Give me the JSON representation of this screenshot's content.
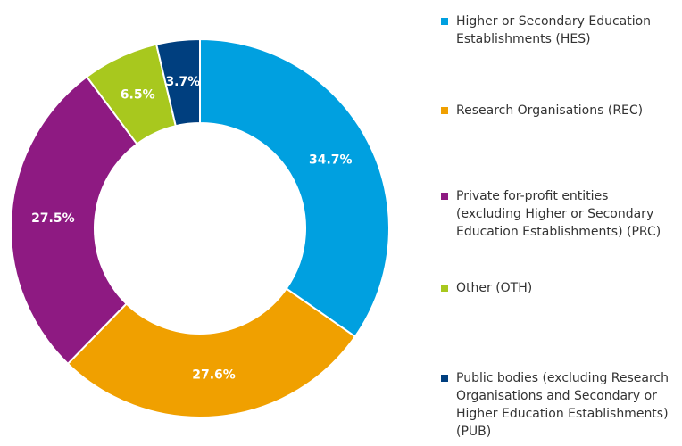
{
  "chart_data": {
    "type": "donut",
    "categories": [
      "Higher or Secondary Education Establishments (HES)",
      "Research Organisations (REC)",
      "Private for-profit entities (excluding Higher or Secondary Education Establishments) (PRC)",
      "Other (OTH)",
      "Public bodies (excluding Research Organisations and Secondary or Higher Education Establishments) (PUB)"
    ],
    "values": [
      34.7,
      27.6,
      27.5,
      6.5,
      3.7
    ],
    "value_labels": [
      "34.7%",
      "27.6%",
      "27.5%",
      "6.5%",
      "3.7%"
    ],
    "colors": [
      "#00a0e0",
      "#f0a000",
      "#8e1a82",
      "#a8c81e",
      "#003f7f"
    ],
    "legend": "right"
  }
}
